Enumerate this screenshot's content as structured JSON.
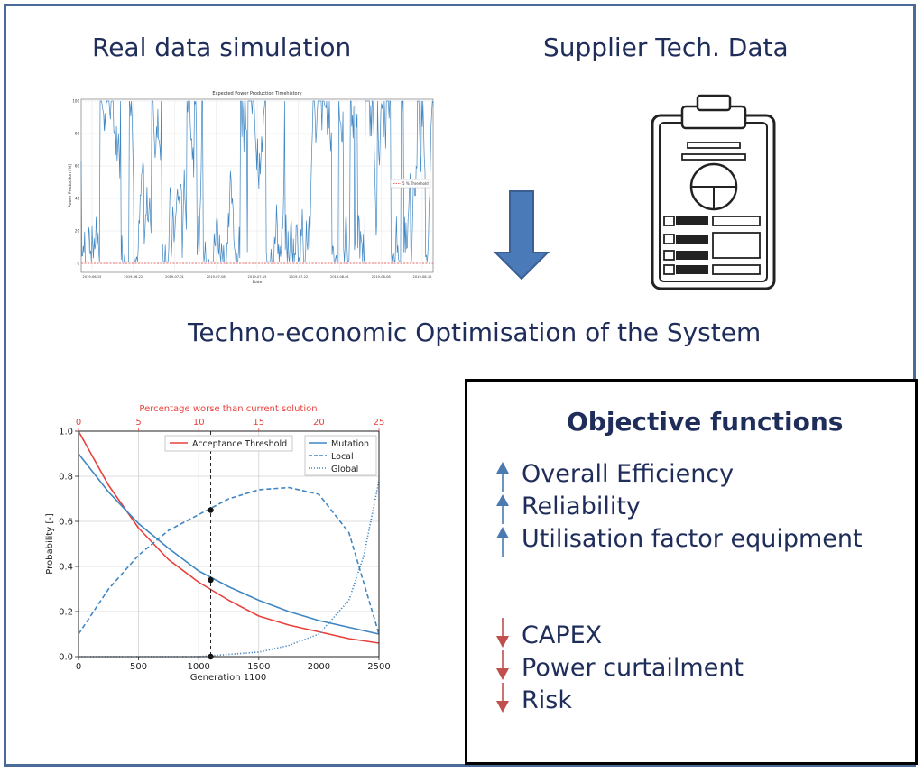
{
  "headings": {
    "real_data": "Real data simulation",
    "supplier": "Supplier Tech. Data",
    "optimisation": "Techno-economic Optimisation of the System"
  },
  "timeseries": {
    "title": "Expected Power Production Timehistory",
    "xlabel": "Date",
    "ylabel": "Power Production [%]",
    "legend": "5 % Threshold",
    "yticks": [
      "0",
      "20",
      "40",
      "60",
      "80",
      "100"
    ],
    "xticks": [
      "2019-06-15",
      "2019-06-22",
      "2019-07-01",
      "2019-07-08",
      "2019-07-15",
      "2019-07-22",
      "2019-08-01",
      "2019-08-08",
      "2019-08-15"
    ]
  },
  "objectives": {
    "title": "Objective functions",
    "up": [
      "Overall Efficiency",
      "Reliability",
      "Utilisation factor equipment"
    ],
    "down": [
      "CAPEX",
      "Power curtailment",
      "Risk"
    ]
  },
  "colors": {
    "text": "#1f2d5a",
    "up_arrow": "#4a7ab0",
    "down_arrow": "#c0504d",
    "frame": "#4a6a9a"
  },
  "chart_data": {
    "type": "line",
    "title": "",
    "xlabel": "Generation 1100",
    "ylabel": "Probability [-]",
    "top_axis_label": "Percentage worse than current solution",
    "xlim": [
      0,
      2500
    ],
    "ylim": [
      0,
      1.0
    ],
    "top_xlim": [
      0,
      25
    ],
    "x_ticks": [
      "0",
      "500",
      "1000",
      "1500",
      "2000",
      "2500"
    ],
    "y_ticks": [
      "0.0",
      "0.2",
      "0.4",
      "0.6",
      "0.8",
      "1.0"
    ],
    "top_ticks": [
      "0",
      "5",
      "10",
      "15",
      "20",
      "25"
    ],
    "legend_left": [
      "Acceptance Threshold"
    ],
    "legend_right": [
      "Mutation",
      "Local",
      "Global"
    ],
    "marker_x": 1100,
    "marker_points": [
      0.65,
      0.34,
      0.0
    ],
    "series": [
      {
        "name": "Acceptance Threshold",
        "style": "solid",
        "color": "#e8413c",
        "x": [
          0,
          250,
          500,
          750,
          1000,
          1250,
          1500,
          1750,
          2000,
          2250,
          2500
        ],
        "y": [
          1.0,
          0.76,
          0.57,
          0.43,
          0.33,
          0.25,
          0.18,
          0.14,
          0.11,
          0.08,
          0.06
        ]
      },
      {
        "name": "Mutation",
        "style": "solid",
        "color": "#3f86c2",
        "x": [
          0,
          250,
          500,
          750,
          1000,
          1250,
          1500,
          1750,
          2000,
          2250,
          2500
        ],
        "y": [
          0.9,
          0.73,
          0.59,
          0.48,
          0.38,
          0.31,
          0.25,
          0.2,
          0.16,
          0.13,
          0.1
        ]
      },
      {
        "name": "Local",
        "style": "dashed",
        "color": "#3f86c2",
        "x": [
          0,
          250,
          500,
          750,
          1000,
          1250,
          1500,
          1750,
          2000,
          2250,
          2500
        ],
        "y": [
          0.1,
          0.3,
          0.45,
          0.56,
          0.63,
          0.7,
          0.74,
          0.75,
          0.72,
          0.55,
          0.1
        ]
      },
      {
        "name": "Global",
        "style": "dotted",
        "color": "#3f86c2",
        "x": [
          0,
          1000,
          1250,
          1500,
          1750,
          2000,
          2250,
          2375,
          2500
        ],
        "y": [
          0.0,
          0.0,
          0.01,
          0.02,
          0.05,
          0.1,
          0.25,
          0.45,
          0.78
        ]
      }
    ]
  }
}
